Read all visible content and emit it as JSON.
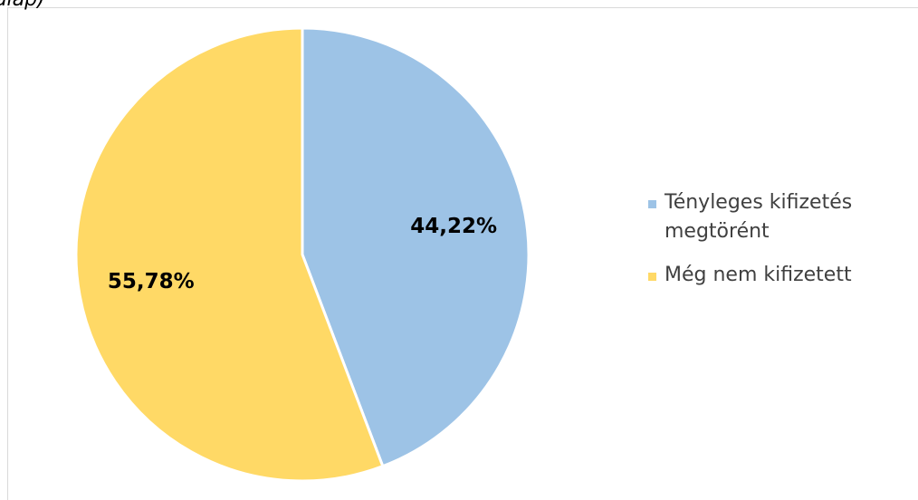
{
  "chart_data": {
    "type": "pie",
    "subtitle": "alap)",
    "categories": [
      "Tényleges kifizetés megtörént",
      "Még nem kifizetett"
    ],
    "values": [
      44.22,
      55.78
    ],
    "value_labels": [
      "44,22%",
      "55,78%"
    ],
    "colors": [
      "#9dc3e6",
      "#ffd966"
    ],
    "legend": "right"
  }
}
